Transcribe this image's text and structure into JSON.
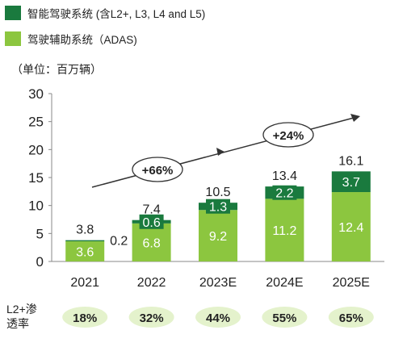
{
  "legend": [
    {
      "label": "智能驾驶系统 (含L2+, L3, L4 and L5)",
      "color": "#1a7a3e"
    },
    {
      "label": "驾驶辅助系统（ADAS)",
      "color": "#8cc63f"
    }
  ],
  "unit_label": "（单位：百万辆）",
  "penetration": {
    "label": "L2+渗透率",
    "values": [
      "18%",
      "32%",
      "44%",
      "55%",
      "65%"
    ]
  },
  "growth_annotations": [
    "+66%",
    "+24%"
  ],
  "chart_data": {
    "type": "bar",
    "stacked": true,
    "categories": [
      "2021",
      "2022",
      "2023E",
      "2024E",
      "2025E"
    ],
    "series": [
      {
        "name": "驾驶辅助系统（ADAS)",
        "values": [
          3.6,
          6.8,
          9.2,
          11.2,
          12.4
        ],
        "color": "#8cc63f"
      },
      {
        "name": "智能驾驶系统 (含L2+, L3, L4 and L5)",
        "values": [
          0.2,
          0.6,
          1.3,
          2.2,
          3.7
        ],
        "color": "#1a7a3e"
      }
    ],
    "totals": [
      3.8,
      7.4,
      10.5,
      13.4,
      16.1
    ],
    "ylim": [
      0,
      30
    ],
    "yticks": [
      0,
      5,
      10,
      15,
      20,
      25,
      30
    ],
    "grid": false
  }
}
